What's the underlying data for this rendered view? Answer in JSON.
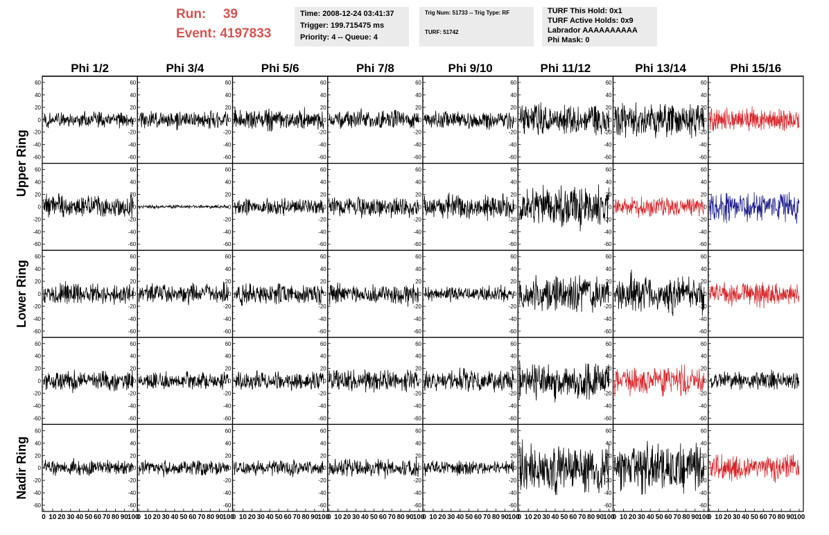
{
  "header": {
    "run_label": "Run:",
    "run_value": "39",
    "event_label": "Event:",
    "event_value": "4197833"
  },
  "info_panels": {
    "time": "Time: 2008-12-24 03:41:37",
    "trigger": "Trigger: 199.715475 ms",
    "priority": "Priority: 4 -- Queue: 4",
    "trig_num": "Trig Num: 51733 -- Trig Type: RF",
    "turf": "TURF: 51742",
    "turf_hold": "TURF This Hold: 0x1",
    "turf_active": "TURF Active Holds: 0x9",
    "labrador": "Labrador AAAAAAAAAA",
    "phi_mask": "Phi Mask: 0"
  },
  "colors": {
    "accent_text": "#d9534f",
    "panel_bg": "#ebebeb",
    "trace_black": "#000000",
    "trace_red": "#d8262b",
    "trace_blue": "#1c1c8c"
  },
  "chart_data": {
    "type": "line",
    "title": "",
    "columns": [
      "Phi 1/2",
      "Phi 3/4",
      "Phi 5/6",
      "Phi 7/8",
      "Phi 9/10",
      "Phi 11/12",
      "Phi 13/14",
      "Phi 15/16"
    ],
    "rows": [
      "Upper Ring",
      "Lower Ring",
      "Nadir Ring"
    ],
    "xlim": [
      0,
      100
    ],
    "ylim": [
      -70,
      70
    ],
    "x_tick_labels": [
      "0",
      "10",
      "20",
      "30",
      "40",
      "50",
      "60",
      "70",
      "80",
      "90",
      "100"
    ],
    "y_tick_labels": [
      "60",
      "40",
      "20",
      "0",
      "-20",
      "-40",
      "-60"
    ],
    "grid": false,
    "panels": [
      {
        "row": 0,
        "col": 0,
        "amplitude": 14,
        "color": "black"
      },
      {
        "row": 0,
        "col": 1,
        "amplitude": 15,
        "color": "black"
      },
      {
        "row": 0,
        "col": 2,
        "amplitude": 18,
        "color": "black"
      },
      {
        "row": 0,
        "col": 3,
        "amplitude": 16,
        "color": "black"
      },
      {
        "row": 0,
        "col": 4,
        "amplitude": 15,
        "color": "black"
      },
      {
        "row": 0,
        "col": 5,
        "amplitude": 28,
        "color": "black"
      },
      {
        "row": 0,
        "col": 6,
        "amplitude": 30,
        "color": "black"
      },
      {
        "row": 0,
        "col": 7,
        "amplitude": 20,
        "color": "red"
      },
      {
        "row": 1,
        "col": 0,
        "amplitude": 20,
        "color": "black"
      },
      {
        "row": 1,
        "col": 1,
        "amplitude": 3,
        "color": "black"
      },
      {
        "row": 1,
        "col": 2,
        "amplitude": 14,
        "color": "black"
      },
      {
        "row": 1,
        "col": 3,
        "amplitude": 17,
        "color": "black"
      },
      {
        "row": 1,
        "col": 4,
        "amplitude": 22,
        "color": "black"
      },
      {
        "row": 1,
        "col": 5,
        "amplitude": 38,
        "color": "black"
      },
      {
        "row": 1,
        "col": 6,
        "amplitude": 17,
        "color": "red"
      },
      {
        "row": 1,
        "col": 7,
        "amplitude": 24,
        "color": "blue"
      },
      {
        "row": 2,
        "col": 0,
        "amplitude": 18,
        "color": "black"
      },
      {
        "row": 2,
        "col": 1,
        "amplitude": 17,
        "color": "black"
      },
      {
        "row": 2,
        "col": 2,
        "amplitude": 17,
        "color": "black"
      },
      {
        "row": 2,
        "col": 3,
        "amplitude": 18,
        "color": "black"
      },
      {
        "row": 2,
        "col": 4,
        "amplitude": 13,
        "color": "black"
      },
      {
        "row": 2,
        "col": 5,
        "amplitude": 32,
        "color": "black"
      },
      {
        "row": 2,
        "col": 6,
        "amplitude": 34,
        "color": "black"
      },
      {
        "row": 2,
        "col": 7,
        "amplitude": 20,
        "color": "red"
      },
      {
        "row": 3,
        "col": 0,
        "amplitude": 17,
        "color": "black"
      },
      {
        "row": 3,
        "col": 1,
        "amplitude": 15,
        "color": "black"
      },
      {
        "row": 3,
        "col": 2,
        "amplitude": 15,
        "color": "black"
      },
      {
        "row": 3,
        "col": 3,
        "amplitude": 19,
        "color": "black"
      },
      {
        "row": 3,
        "col": 4,
        "amplitude": 20,
        "color": "black"
      },
      {
        "row": 3,
        "col": 5,
        "amplitude": 30,
        "color": "black"
      },
      {
        "row": 3,
        "col": 6,
        "amplitude": 26,
        "color": "red"
      },
      {
        "row": 3,
        "col": 7,
        "amplitude": 16,
        "color": "black"
      },
      {
        "row": 4,
        "col": 0,
        "amplitude": 14,
        "color": "black"
      },
      {
        "row": 4,
        "col": 1,
        "amplitude": 14,
        "color": "black"
      },
      {
        "row": 4,
        "col": 2,
        "amplitude": 13,
        "color": "black"
      },
      {
        "row": 4,
        "col": 3,
        "amplitude": 15,
        "color": "black"
      },
      {
        "row": 4,
        "col": 4,
        "amplitude": 12,
        "color": "black"
      },
      {
        "row": 4,
        "col": 5,
        "amplitude": 42,
        "color": "black"
      },
      {
        "row": 4,
        "col": 6,
        "amplitude": 40,
        "color": "black"
      },
      {
        "row": 4,
        "col": 7,
        "amplitude": 24,
        "color": "red"
      }
    ]
  }
}
